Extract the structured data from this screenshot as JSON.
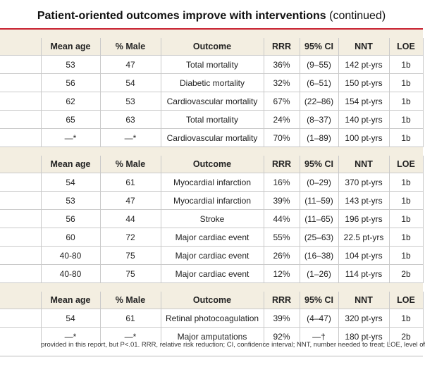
{
  "title": {
    "bold": "Patient-oriented outcomes improve with interventions",
    "suffix": " (continued)"
  },
  "columns": [
    "Mean age",
    "% Male",
    "Outcome",
    "RRR",
    "95% CI",
    "NNT",
    "LOE"
  ],
  "groups": [
    {
      "rows": [
        [
          "53",
          "47",
          "Total mortality",
          "36%",
          "(9–55)",
          "142 pt-yrs",
          "1b"
        ],
        [
          "56",
          "54",
          "Diabetic mortality",
          "32%",
          "(6–51)",
          "150 pt-yrs",
          "1b"
        ],
        [
          "62",
          "53",
          "Cardiovascular mortality",
          "67%",
          "(22–86)",
          "154 pt-yrs",
          "1b"
        ],
        [
          "65",
          "63",
          "Total mortality",
          "24%",
          "(8–37)",
          "140 pt-yrs",
          "1b"
        ],
        [
          "—*",
          "—*",
          "Cardiovascular mortality",
          "70%",
          "(1–89)",
          "100 pt-yrs",
          "1b"
        ]
      ]
    },
    {
      "rows": [
        [
          "54",
          "61",
          "Myocardial infarction",
          "16%",
          "(0–29)",
          "370 pt-yrs",
          "1b"
        ],
        [
          "53",
          "47",
          "Myocardial infarction",
          "39%",
          "(11–59)",
          "143 pt-yrs",
          "1b"
        ],
        [
          "56",
          "44",
          "Stroke",
          "44%",
          "(11–65)",
          "196 pt-yrs",
          "1b"
        ],
        [
          "60",
          "72",
          "Major cardiac event",
          "55%",
          "(25–63)",
          "22.5 pt-yrs",
          "1b"
        ],
        [
          "40-80",
          "75",
          "Major cardiac event",
          "26%",
          "(16–38)",
          "104 pt-yrs",
          "1b"
        ],
        [
          "40-80",
          "75",
          "Major cardiac event",
          "12%",
          "(1–26)",
          "114 pt-yrs",
          "2b"
        ]
      ]
    },
    {
      "rows": [
        [
          "54",
          "61",
          "Retinal photocoagulation",
          "39%",
          "(4–47)",
          "320 pt-yrs",
          "1b"
        ],
        [
          "—*",
          "—*",
          "Major amputations",
          "92%",
          "—†",
          "180 pt-yrs",
          "2b"
        ]
      ]
    }
  ],
  "footnote": "provided in this report, but P<.01. RRR, relative risk reduction; CI, confidence interval; NNT, number needed to treat; LOE, level of",
  "colors": {
    "accent_line": "#c8202f",
    "header_bg": "#f3eee1",
    "rule": "#c9c9c9"
  }
}
